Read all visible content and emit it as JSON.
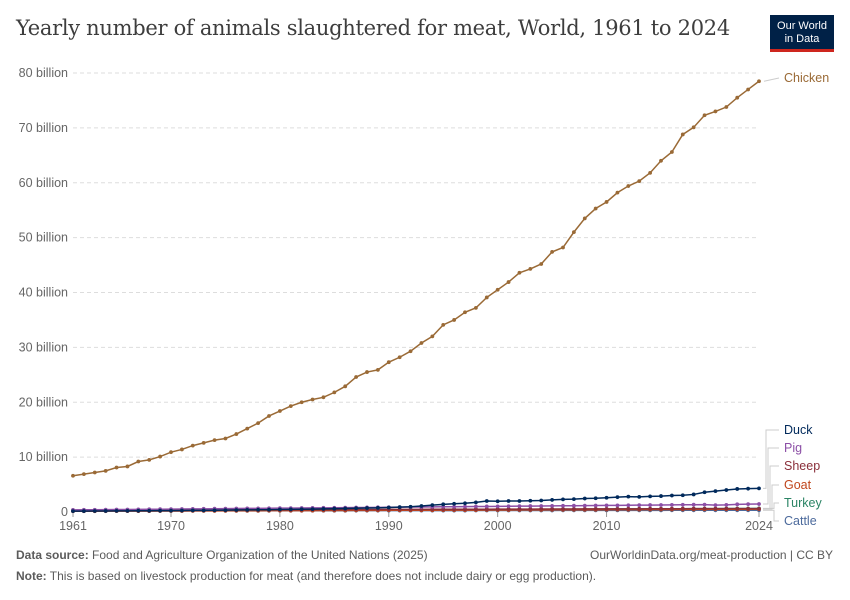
{
  "title": "Yearly number of animals slaughtered for meat, World, 1961 to 2024",
  "logo": {
    "line1": "Our World",
    "line2": "in Data",
    "bg": "#002147",
    "accent": "#ce261e"
  },
  "footer": {
    "source_label": "Data source:",
    "source_text": "Food and Agriculture Organization of the United Nations (2025)",
    "url": "OurWorldinData.org/meat-production | CC BY",
    "note_label": "Note:",
    "note_text": "This is based on livestock production for meat (and therefore does not include dairy or egg production)."
  },
  "chart_data": {
    "type": "line",
    "title": "Yearly number of animals slaughtered for meat, World, 1961 to 2024",
    "xlim": [
      1961,
      2024
    ],
    "ylim": [
      0,
      80000000000
    ],
    "grid": true,
    "x_ticks": [
      "1961",
      "1970",
      "1980",
      "1990",
      "2000",
      "2010",
      "2024"
    ],
    "y_ticks": [
      "0",
      "10 billion",
      "20 billion",
      "30 billion",
      "40 billion",
      "50 billion",
      "60 billion",
      "70 billion",
      "80 billion"
    ],
    "units": "billion",
    "legend": "right, line-end labels",
    "series": [
      {
        "name": "Chicken",
        "color": "#9a6a36",
        "values": [
          6.6,
          6.9,
          7.2,
          7.5,
          8.1,
          8.3,
          9.2,
          9.5,
          10.1,
          10.9,
          11.4,
          12.1,
          12.6,
          13.1,
          13.4,
          14.2,
          15.2,
          16.2,
          17.5,
          18.4,
          19.3,
          20.0,
          20.5,
          20.9,
          21.8,
          22.9,
          24.6,
          25.5,
          25.9,
          27.3,
          28.2,
          29.3,
          30.8,
          32.0,
          34.1,
          35.0,
          36.4,
          37.2,
          39.1,
          40.5,
          41.9,
          43.6,
          44.3,
          45.2,
          47.4,
          48.2,
          51.0,
          53.5,
          55.3,
          56.5,
          58.2,
          59.4,
          60.3,
          61.8,
          64.0,
          65.6,
          68.8,
          70.1,
          72.3,
          73.0,
          73.8,
          75.5,
          77.0,
          78.5
        ]
      },
      {
        "name": "Duck",
        "color": "#00295b",
        "values": [
          0.16,
          0.17,
          0.18,
          0.19,
          0.2,
          0.21,
          0.22,
          0.23,
          0.24,
          0.25,
          0.27,
          0.29,
          0.3,
          0.32,
          0.34,
          0.36,
          0.38,
          0.4,
          0.42,
          0.45,
          0.48,
          0.5,
          0.53,
          0.56,
          0.6,
          0.64,
          0.68,
          0.72,
          0.76,
          0.82,
          0.88,
          0.95,
          1.1,
          1.25,
          1.4,
          1.5,
          1.6,
          1.75,
          2.0,
          1.95,
          2.0,
          2.0,
          2.05,
          2.1,
          2.2,
          2.3,
          2.35,
          2.45,
          2.5,
          2.6,
          2.7,
          2.8,
          2.75,
          2.85,
          2.9,
          3.0,
          3.05,
          3.2,
          3.6,
          3.8,
          4.0,
          4.2,
          4.25,
          4.3
        ]
      },
      {
        "name": "Pig",
        "color": "#8c4fa6",
        "values": [
          0.38,
          0.4,
          0.41,
          0.43,
          0.45,
          0.46,
          0.48,
          0.5,
          0.51,
          0.53,
          0.55,
          0.56,
          0.58,
          0.6,
          0.61,
          0.63,
          0.65,
          0.66,
          0.68,
          0.7,
          0.71,
          0.73,
          0.75,
          0.76,
          0.78,
          0.8,
          0.81,
          0.83,
          0.85,
          0.86,
          0.88,
          0.9,
          0.91,
          0.93,
          0.95,
          0.96,
          0.98,
          1.0,
          1.01,
          1.03,
          1.05,
          1.06,
          1.08,
          1.1,
          1.11,
          1.13,
          1.15,
          1.16,
          1.18,
          1.2,
          1.21,
          1.23,
          1.25,
          1.26,
          1.28,
          1.3,
          1.31,
          1.33,
          1.35,
          1.25,
          1.3,
          1.4,
          1.43,
          1.45
        ]
      },
      {
        "name": "Sheep",
        "color": "#8a2f3a",
        "values": [
          0.33,
          0.33,
          0.34,
          0.34,
          0.35,
          0.35,
          0.36,
          0.36,
          0.37,
          0.37,
          0.38,
          0.38,
          0.38,
          0.39,
          0.39,
          0.4,
          0.4,
          0.41,
          0.41,
          0.42,
          0.42,
          0.43,
          0.43,
          0.44,
          0.44,
          0.45,
          0.45,
          0.46,
          0.46,
          0.47,
          0.47,
          0.48,
          0.48,
          0.49,
          0.49,
          0.5,
          0.5,
          0.51,
          0.51,
          0.52,
          0.52,
          0.53,
          0.53,
          0.54,
          0.54,
          0.55,
          0.55,
          0.56,
          0.56,
          0.57,
          0.57,
          0.58,
          0.58,
          0.59,
          0.59,
          0.6,
          0.6,
          0.61,
          0.61,
          0.62,
          0.62,
          0.62,
          0.62,
          0.62
        ]
      },
      {
        "name": "Goat",
        "color": "#c0461c",
        "values": [
          0.13,
          0.14,
          0.14,
          0.15,
          0.16,
          0.16,
          0.17,
          0.17,
          0.18,
          0.19,
          0.19,
          0.2,
          0.2,
          0.21,
          0.22,
          0.22,
          0.23,
          0.23,
          0.24,
          0.25,
          0.25,
          0.26,
          0.26,
          0.27,
          0.28,
          0.28,
          0.29,
          0.29,
          0.3,
          0.31,
          0.31,
          0.32,
          0.32,
          0.33,
          0.34,
          0.34,
          0.35,
          0.35,
          0.36,
          0.37,
          0.37,
          0.38,
          0.38,
          0.39,
          0.4,
          0.4,
          0.41,
          0.41,
          0.42,
          0.43,
          0.43,
          0.44,
          0.44,
          0.45,
          0.46,
          0.46,
          0.47,
          0.47,
          0.48,
          0.49,
          0.49,
          0.5,
          0.51,
          0.52
        ]
      },
      {
        "name": "Turkey",
        "color": "#2b8465",
        "values": [
          0.2,
          0.21,
          0.21,
          0.22,
          0.23,
          0.23,
          0.24,
          0.25,
          0.26,
          0.26,
          0.27,
          0.28,
          0.28,
          0.29,
          0.3,
          0.31,
          0.31,
          0.32,
          0.33,
          0.33,
          0.34,
          0.35,
          0.36,
          0.36,
          0.37,
          0.38,
          0.38,
          0.39,
          0.4,
          0.41,
          0.41,
          0.42,
          0.43,
          0.43,
          0.44,
          0.45,
          0.46,
          0.46,
          0.47,
          0.48,
          0.48,
          0.49,
          0.5,
          0.51,
          0.51,
          0.52,
          0.53,
          0.53,
          0.54,
          0.55,
          0.56,
          0.56,
          0.57,
          0.58,
          0.58,
          0.59,
          0.6,
          0.61,
          0.61,
          0.62,
          0.63,
          0.63,
          0.64,
          0.65
        ]
      },
      {
        "name": "Cattle",
        "color": "#4c6a9c",
        "values": [
          0.17,
          0.17,
          0.17,
          0.18,
          0.18,
          0.18,
          0.18,
          0.19,
          0.19,
          0.19,
          0.19,
          0.2,
          0.2,
          0.2,
          0.21,
          0.21,
          0.21,
          0.21,
          0.22,
          0.22,
          0.22,
          0.22,
          0.23,
          0.23,
          0.23,
          0.23,
          0.24,
          0.24,
          0.24,
          0.24,
          0.25,
          0.25,
          0.25,
          0.26,
          0.26,
          0.26,
          0.26,
          0.27,
          0.27,
          0.27,
          0.27,
          0.28,
          0.28,
          0.28,
          0.28,
          0.29,
          0.29,
          0.29,
          0.29,
          0.3,
          0.3,
          0.3,
          0.3,
          0.3,
          0.3,
          0.31,
          0.31,
          0.31,
          0.31,
          0.31,
          0.31,
          0.31,
          0.31,
          0.31
        ]
      }
    ]
  }
}
